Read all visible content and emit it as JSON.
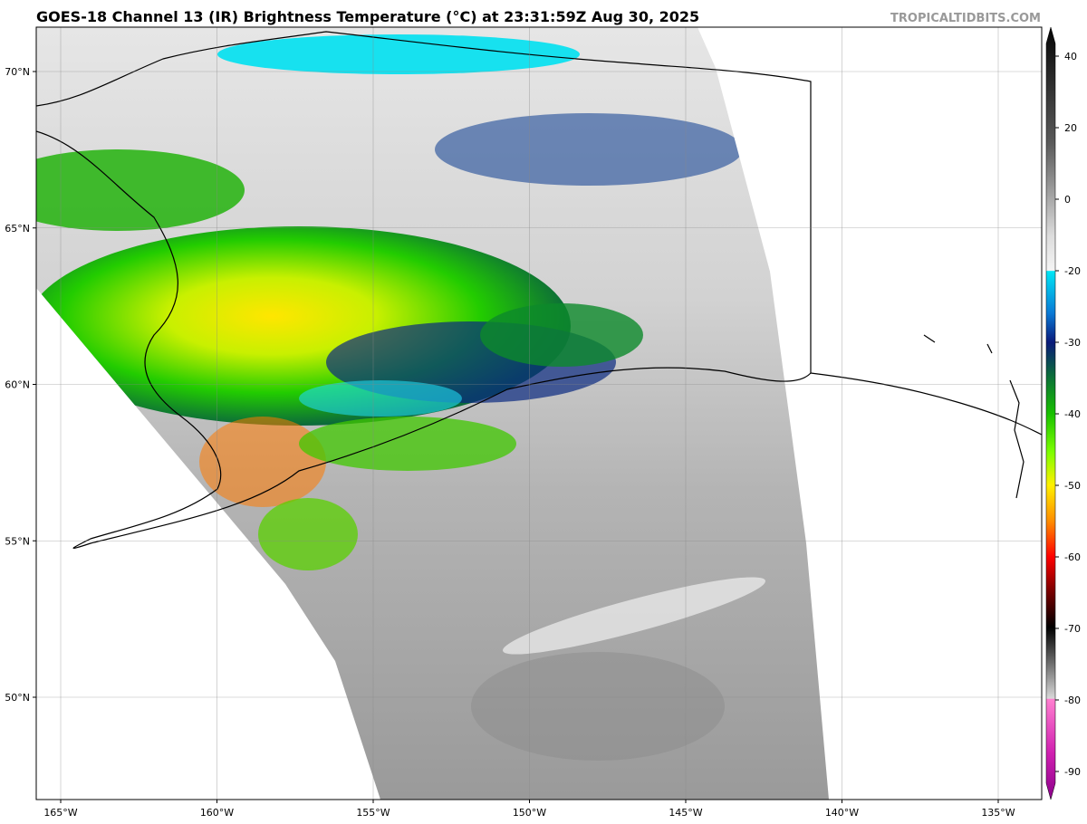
{
  "header": {
    "title": "GOES-18 Channel 13 (IR) Brightness Temperature (°C) at 23:31:59Z Aug 30, 2025",
    "credit": "TROPICALTIDBITS.COM"
  },
  "map": {
    "lat_labels": [
      "70°N",
      "65°N",
      "60°N",
      "55°N",
      "50°N"
    ],
    "lon_labels": [
      "165°W",
      "160°W",
      "155°W",
      "150°W",
      "145°W",
      "140°W",
      "135°W"
    ]
  },
  "colorbar": {
    "ticks": [
      40,
      20,
      0,
      -20,
      -30,
      -40,
      -50,
      -60,
      -70,
      -80,
      -90
    ]
  }
}
